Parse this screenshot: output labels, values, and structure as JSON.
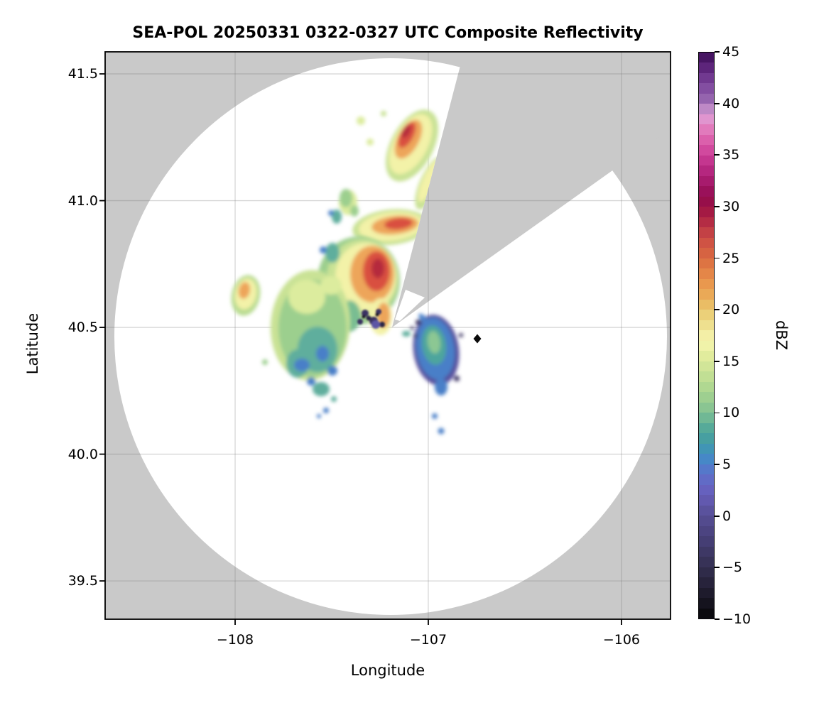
{
  "chart_data": {
    "type": "heatmap",
    "variant": "radar-ppi-composite-reflectivity-map",
    "title": "SEA-POL 20250331 0322-0327 UTC Composite Reflectivity",
    "xlabel": "Longitude",
    "ylabel": "Latitude",
    "xlim": [
      -108.673,
      -105.746
    ],
    "ylim": [
      39.349,
      41.587
    ],
    "grid": true,
    "x_tick_values": [
      -108,
      -107,
      -106
    ],
    "x_tick_labels": [
      "−108",
      "−107",
      "−106"
    ],
    "y_tick_values": [
      41.5,
      41.0,
      40.5,
      40.0,
      39.5
    ],
    "y_tick_labels": [
      "41.5",
      "41.0",
      "40.5",
      "40.0",
      "39.5"
    ],
    "colorbar": {
      "label": "dBZ",
      "vmin": -10,
      "vmax": 45,
      "band_step_dbz": 1,
      "tick_values": [
        45,
        40,
        35,
        30,
        25,
        20,
        15,
        10,
        5,
        0,
        -5,
        -10
      ],
      "tick_labels": [
        "45",
        "40",
        "35",
        "30",
        "25",
        "20",
        "15",
        "10",
        "5",
        "0",
        "−5",
        "−10"
      ],
      "colormap_stops": [
        [
          -10,
          "#060608"
        ],
        [
          -8,
          "#1a1725"
        ],
        [
          -6,
          "#2b2742"
        ],
        [
          -4,
          "#3b355e"
        ],
        [
          -2,
          "#48417b"
        ],
        [
          0,
          "#564e94"
        ],
        [
          2,
          "#665cb8"
        ],
        [
          3,
          "#6565c3"
        ],
        [
          4,
          "#5c70c9"
        ],
        [
          5,
          "#4d80ca"
        ],
        [
          6,
          "#3f90c3"
        ],
        [
          7,
          "#439aa6"
        ],
        [
          8,
          "#4ba39b"
        ],
        [
          9,
          "#60b096"
        ],
        [
          10,
          "#80c093"
        ],
        [
          12,
          "#a8d48f"
        ],
        [
          14,
          "#c9e295"
        ],
        [
          15,
          "#d9e89a"
        ],
        [
          16,
          "#e9efa0"
        ],
        [
          17,
          "#f6f6b2"
        ],
        [
          18,
          "#f0e79a"
        ],
        [
          19,
          "#ecd884"
        ],
        [
          20,
          "#e9c76e"
        ],
        [
          21,
          "#eab25b"
        ],
        [
          23,
          "#e88f4a"
        ],
        [
          25,
          "#d96b41"
        ],
        [
          27,
          "#cb4b45"
        ],
        [
          29,
          "#ac2244"
        ],
        [
          30,
          "#9b1244"
        ],
        [
          31,
          "#930c50"
        ],
        [
          33,
          "#ad2077"
        ],
        [
          35,
          "#cc3d97"
        ],
        [
          37,
          "#e06bb3"
        ],
        [
          38,
          "#e288c5"
        ],
        [
          39,
          "#dda2d8"
        ],
        [
          40,
          "#9e6fb4"
        ],
        [
          41,
          "#8c58a8"
        ],
        [
          42,
          "#7a4399"
        ],
        [
          43,
          "#672e86"
        ],
        [
          44,
          "#531c70"
        ],
        [
          45,
          "#3a0d55"
        ]
      ]
    },
    "radar": {
      "name": "SEA-POL",
      "date": "20250331",
      "time_utc": "0322-0327",
      "product": "Composite Reflectivity",
      "site_lon": -107.2,
      "site_lat": 40.5,
      "scan_range_white_circle": true,
      "blocked_sector_azimuth_deg": [
        14,
        54
      ]
    },
    "marker": {
      "shape": "black-diamond",
      "lon": -106.75,
      "lat": 40.455
    },
    "echo_regions": [
      {
        "name": "north-convective-streak",
        "lon": -107.1,
        "lat": 41.25,
        "approx_max_dbz": 30
      },
      {
        "name": "small-green-patch-north",
        "lon": -107.41,
        "lat": 40.99,
        "approx_max_dbz": 15
      },
      {
        "name": "orange-band-upper",
        "lon": -107.19,
        "lat": 40.9,
        "approx_max_dbz": 28
      },
      {
        "name": "main-convective-mass",
        "lon": -107.3,
        "lat": 40.7,
        "approx_max_dbz": 30
      },
      {
        "name": "west-small-cell",
        "lon": -107.94,
        "lat": 40.63,
        "approx_max_dbz": 24
      },
      {
        "name": "stratiform-green-mass",
        "lon": -107.61,
        "lat": 40.5,
        "approx_max_dbz": 18
      },
      {
        "name": "weak-dark-cluster-near-radar",
        "lon": -107.3,
        "lat": 40.54,
        "approx_max_dbz": 0
      },
      {
        "name": "east-blue-stratiform-blob",
        "lon": -106.96,
        "lat": 40.42,
        "approx_max_dbz": 10
      },
      {
        "name": "weak-specks-south",
        "lon": -107.53,
        "lat": 40.19,
        "approx_max_dbz": 5
      }
    ],
    "colors": {
      "outside_range_gray": "#c9c9c9",
      "in_range_white": "#ffffff",
      "gridline": "rgba(110,110,110,0.28)",
      "axis_black": "#000000"
    }
  }
}
